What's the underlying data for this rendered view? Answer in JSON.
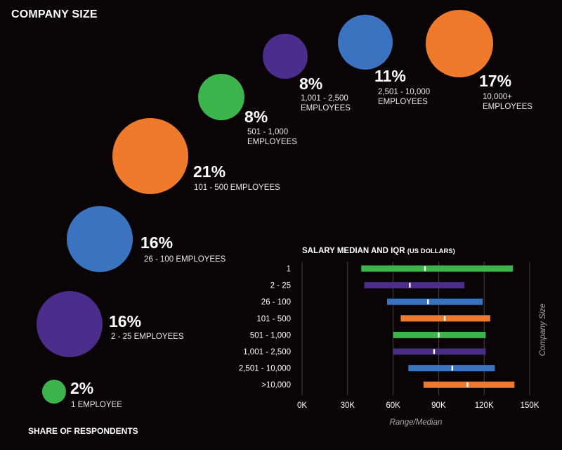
{
  "page_title": "COMPANY SIZE",
  "footer": "SHARE OF RESPONDENTS",
  "bubbles": [
    {
      "pct": "2%",
      "label": "1 EMPLOYEE",
      "color": "#3cb44b"
    },
    {
      "pct": "16%",
      "label": "2 - 25 EMPLOYEES",
      "color": "#4b2d8c"
    },
    {
      "pct": "16%",
      "label": "26 - 100 EMPLOYEES",
      "color": "#3b73c0"
    },
    {
      "pct": "21%",
      "label": "101 - 500 EMPLOYEES",
      "color": "#f07a2c"
    },
    {
      "pct": "8%",
      "label": "501 - 1,000 EMPLOYEES",
      "color": "#3cb44b"
    },
    {
      "pct": "8%",
      "label": "1,001 - 2,500 EMPLOYEES",
      "color": "#4b2d8c"
    },
    {
      "pct": "11%",
      "label": "2,501 - 10,000 EMPLOYEES",
      "color": "#3b73c0"
    },
    {
      "pct": "17%",
      "label": "10,000+ EMPLOYEES",
      "color": "#f07a2c"
    }
  ],
  "chart_data": {
    "type": "range-bar",
    "title": "SALARY MEDIAN AND IQR",
    "title_unit": "(US DOLLARS)",
    "xlabel": "Range/Median",
    "ylabel": "Company Size",
    "xlim": [
      0,
      150000
    ],
    "xticks": [
      0,
      30000,
      60000,
      90000,
      120000,
      150000
    ],
    "xtick_labels": [
      "0K",
      "30K",
      "60K",
      "90K",
      "120K",
      "150K"
    ],
    "grid": true,
    "rows": [
      {
        "label": "1",
        "low": 39000,
        "high": 139000,
        "median": 81000,
        "color": "#3cb44b"
      },
      {
        "label": "2 - 25",
        "low": 41000,
        "high": 107000,
        "median": 71000,
        "color": "#4b2d8c"
      },
      {
        "label": "26 - 100",
        "low": 56000,
        "high": 119000,
        "median": 83000,
        "color": "#3b73c0"
      },
      {
        "label": "101 - 500",
        "low": 65000,
        "high": 124000,
        "median": 94000,
        "color": "#f07a2c"
      },
      {
        "label": "501 - 1,000",
        "low": 60000,
        "high": 121000,
        "median": 90000,
        "color": "#3cb44b"
      },
      {
        "label": "1,001 - 2,500",
        "low": 60000,
        "high": 121000,
        "median": 87000,
        "color": "#4b2d8c"
      },
      {
        "label": "2,501 - 10,000",
        "low": 70000,
        "high": 127000,
        "median": 99000,
        "color": "#3b73c0"
      },
      {
        "label": ">10,000",
        "low": 80000,
        "high": 140000,
        "median": 109000,
        "color": "#f07a2c"
      }
    ]
  }
}
